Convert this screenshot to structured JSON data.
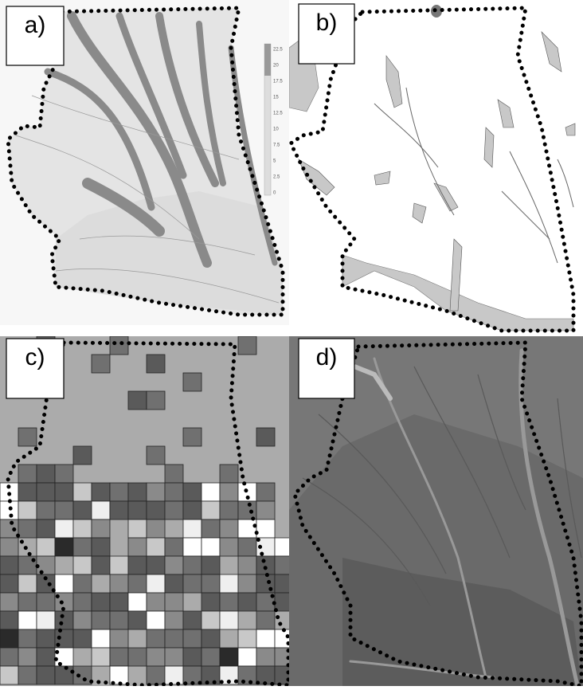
{
  "panels": [
    {
      "label": "a)",
      "legend": [
        "22.5",
        "20",
        "17.5",
        "15",
        "12.5",
        "10",
        "7.5",
        "5",
        "2.5",
        "0"
      ]
    },
    {
      "label": "b)"
    },
    {
      "label": "c)"
    },
    {
      "label": "d)"
    }
  ]
}
